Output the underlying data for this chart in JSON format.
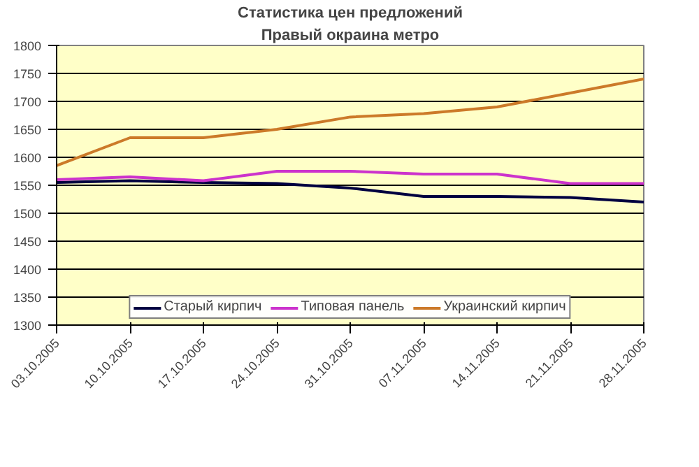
{
  "chart_data": {
    "type": "line",
    "title": "Статистика цен предложений",
    "subtitle": "Правый окраина метро",
    "categories": [
      "03.10.2005",
      "10.10.2005",
      "17.10.2005",
      "24.10.2005",
      "31.10.2005",
      "07.11.2005",
      "14.11.2005",
      "21.11.2005",
      "28.11.2005"
    ],
    "series": [
      {
        "name": "Старый кирпич",
        "color": "#000040",
        "values": [
          1555,
          1558,
          1555,
          1553,
          1545,
          1530,
          1530,
          1528,
          1520
        ]
      },
      {
        "name": "Типовая панель",
        "color": "#cc33cc",
        "values": [
          1560,
          1565,
          1558,
          1575,
          1575,
          1570,
          1570,
          1553,
          1553
        ]
      },
      {
        "name": "Украинский кирпич",
        "color": "#cc7a29",
        "values": [
          1585,
          1635,
          1635,
          1650,
          1672,
          1678,
          1690,
          1715,
          1740
        ]
      }
    ],
    "ylim": [
      1300,
      1800
    ],
    "yticks": [
      1300,
      1350,
      1400,
      1450,
      1500,
      1550,
      1600,
      1650,
      1700,
      1750,
      1800
    ],
    "grid": "y",
    "legend": "bottom",
    "marker": "none",
    "line_style": "solid"
  }
}
